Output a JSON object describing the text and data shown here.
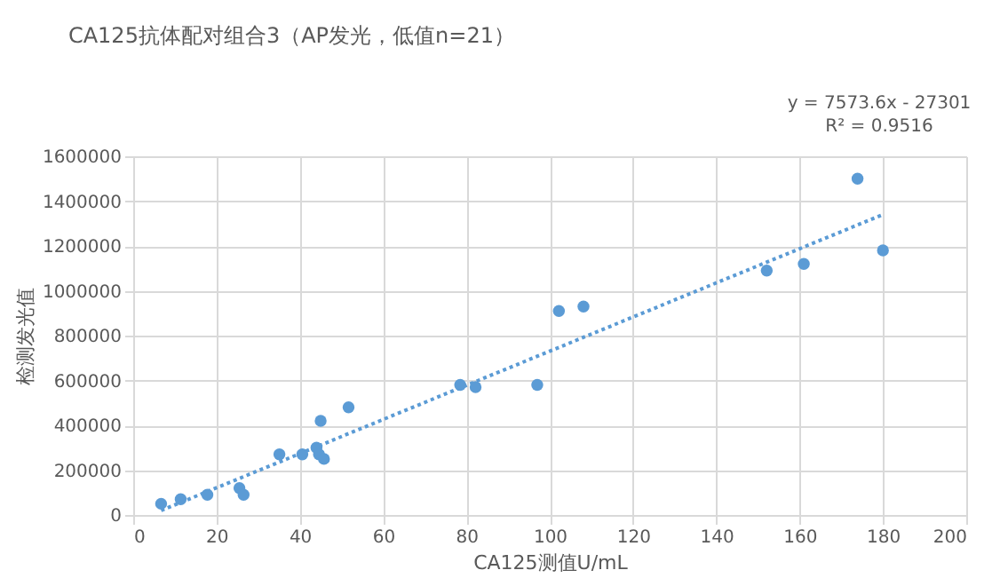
{
  "chart_data": {
    "type": "scatter",
    "title": "CA125抗体配对组合3（AP发光，低值n=21）",
    "xlabel": "CA125测值U/mL",
    "ylabel": "检测发光值",
    "annotations": [
      "y = 7573.6x - 27301",
      "R² = 0.9516"
    ],
    "xlim": [
      0,
      200
    ],
    "xticks": [
      0,
      20,
      40,
      60,
      80,
      100,
      120,
      140,
      160,
      180,
      200
    ],
    "ylim": [
      0,
      1600000
    ],
    "yticks": [
      0,
      200000,
      400000,
      600000,
      800000,
      1000000,
      1200000,
      1400000,
      1600000
    ],
    "grid": true,
    "series": [
      {
        "color": "#5b9bd5",
        "marker": "circle",
        "x": [
          6.7,
          11.4,
          17.8,
          25.5,
          26.5,
          35.1,
          40.6,
          44,
          45,
          44.6,
          45.8,
          51.7,
          78.5,
          82.2,
          97,
          102.2,
          108.1,
          152.1,
          161,
          173.9,
          180
        ],
        "values": [
          50000,
          70000,
          90000,
          120000,
          90000,
          270000,
          270000,
          300000,
          420000,
          270000,
          250000,
          480000,
          580000,
          570000,
          580000,
          910000,
          930000,
          1090000,
          1120000,
          1500000,
          1180000
        ]
      },
      {
        "type": "line",
        "color": "#5b9bd5",
        "marker": "none",
        "line_style": "dotted",
        "x": [
          6.7,
          180
        ],
        "values": [
          20000,
          1340000
        ]
      }
    ]
  }
}
